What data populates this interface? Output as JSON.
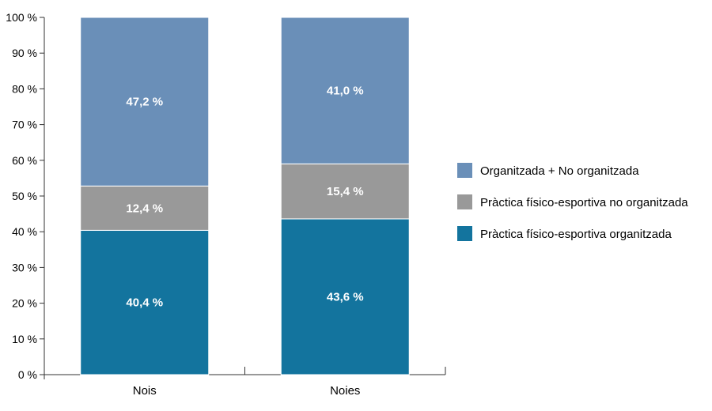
{
  "chart_data": {
    "type": "bar",
    "stacked": true,
    "categories": [
      "Nois",
      "Noies"
    ],
    "series": [
      {
        "name": "Pràctica físico-esportiva organitzada",
        "values": [
          40.4,
          43.6
        ],
        "labels": [
          "40,4 %",
          "43,6 %"
        ],
        "color": "#13749e"
      },
      {
        "name": "Pràctica físico-esportiva no organitzada",
        "values": [
          12.4,
          15.4
        ],
        "labels": [
          "12,4 %",
          "15,4 %"
        ],
        "color": "#999999"
      },
      {
        "name": "Organitzada + No organitzada",
        "values": [
          47.2,
          41.0
        ],
        "labels": [
          "47,2 %",
          "41,0 %"
        ],
        "color": "#6a8fb8"
      }
    ],
    "yticks": [
      "0 %",
      "10 %",
      "20 %",
      "30 %",
      "40 %",
      "50 %",
      "60 %",
      "70 %",
      "80 %",
      "90 %",
      "100 %"
    ],
    "ylim": [
      0,
      100
    ],
    "grid": false,
    "legend": "right",
    "legend_order": [
      "Organitzada + No organitzada",
      "Pràctica físico-esportiva no organitzada",
      "Pràctica físico-esportiva organitzada"
    ]
  }
}
